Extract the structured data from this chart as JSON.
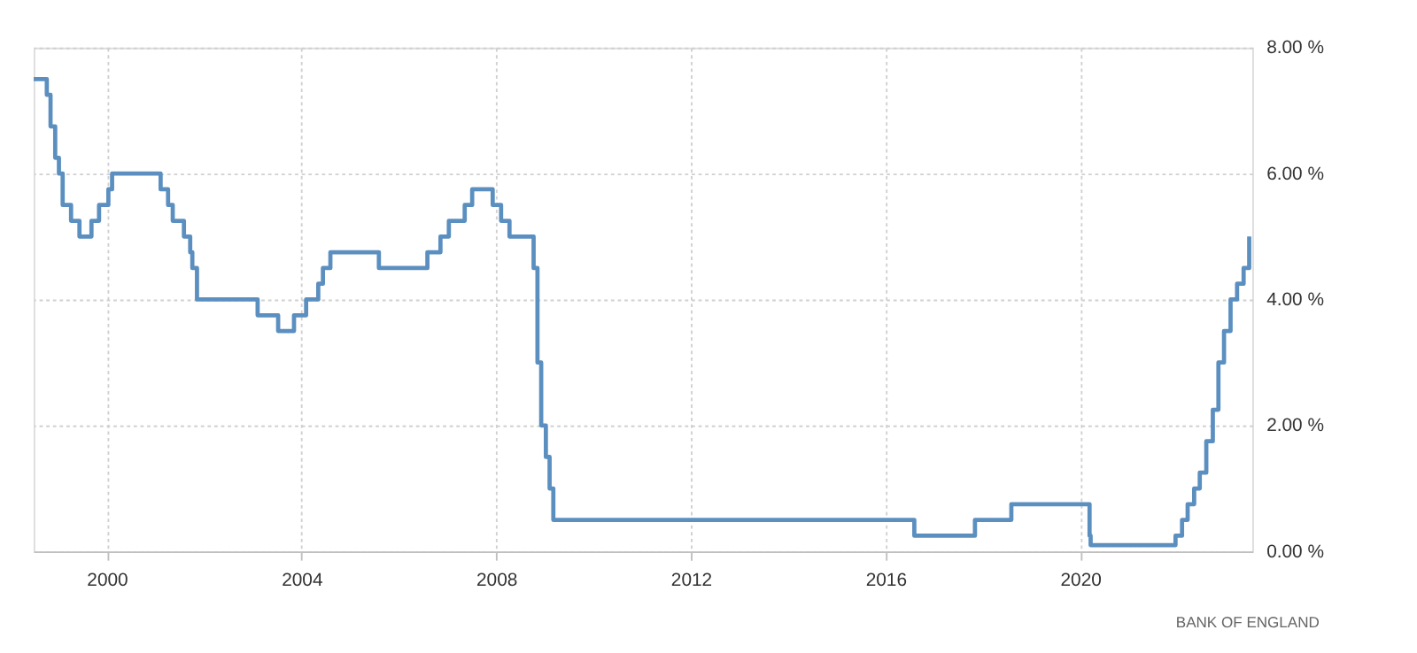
{
  "chart_data": {
    "type": "step",
    "color": "#5b8fc0",
    "line_style": "solid",
    "marker": "none",
    "grid": true,
    "x": [
      "1998-07-01",
      "1998-10-08",
      "1998-11-05",
      "1998-12-10",
      "1999-01-07",
      "1999-02-04",
      "1999-04-08",
      "1999-06-10",
      "1999-09-08",
      "1999-11-04",
      "2000-01-13",
      "2000-02-10",
      "2001-02-08",
      "2001-04-05",
      "2001-05-10",
      "2001-08-02",
      "2001-09-18",
      "2001-10-04",
      "2001-11-08",
      "2003-02-06",
      "2003-07-10",
      "2003-11-06",
      "2004-02-05",
      "2004-05-06",
      "2004-06-10",
      "2004-08-05",
      "2005-08-04",
      "2006-08-03",
      "2006-11-09",
      "2007-01-11",
      "2007-05-10",
      "2007-07-05",
      "2007-12-06",
      "2008-02-07",
      "2008-04-10",
      "2008-10-08",
      "2008-11-06",
      "2008-12-04",
      "2009-01-08",
      "2009-02-05",
      "2009-03-05",
      "2016-08-04",
      "2017-11-02",
      "2018-08-02",
      "2020-03-11",
      "2020-03-19",
      "2021-12-16",
      "2022-02-03",
      "2022-03-17",
      "2022-05-05",
      "2022-06-16",
      "2022-08-04",
      "2022-09-22",
      "2022-11-03",
      "2022-12-15",
      "2023-02-02",
      "2023-03-23",
      "2023-05-11",
      "2023-06-22"
    ],
    "values": [
      7.5,
      7.25,
      6.75,
      6.25,
      6.0,
      5.5,
      5.25,
      5.0,
      5.25,
      5.5,
      5.75,
      6.0,
      5.75,
      5.5,
      5.25,
      5.0,
      4.75,
      4.5,
      4.0,
      3.75,
      3.5,
      3.75,
      4.0,
      4.25,
      4.5,
      4.75,
      4.5,
      4.75,
      5.0,
      5.25,
      5.5,
      5.75,
      5.5,
      5.25,
      5.0,
      4.5,
      3.0,
      2.0,
      1.5,
      1.0,
      0.5,
      0.25,
      0.5,
      0.75,
      0.25,
      0.1,
      0.25,
      0.5,
      0.75,
      1.0,
      1.25,
      1.75,
      2.25,
      3.0,
      3.5,
      4.0,
      4.25,
      4.5,
      5.0
    ],
    "xlim": [
      "1998-07-01",
      "2023-07-15"
    ],
    "xticks": [
      "2000",
      "2004",
      "2008",
      "2012",
      "2016",
      "2020"
    ],
    "ylim": [
      0,
      8
    ],
    "yticks": [
      {
        "value": 0,
        "label": "0.00 %"
      },
      {
        "value": 2,
        "label": "2.00 %"
      },
      {
        "value": 4,
        "label": "4.00 %"
      },
      {
        "value": 6,
        "label": "6.00 %"
      },
      {
        "value": 8,
        "label": "8.00 %"
      }
    ],
    "annotations": [
      "BANK OF ENGLAND"
    ]
  }
}
